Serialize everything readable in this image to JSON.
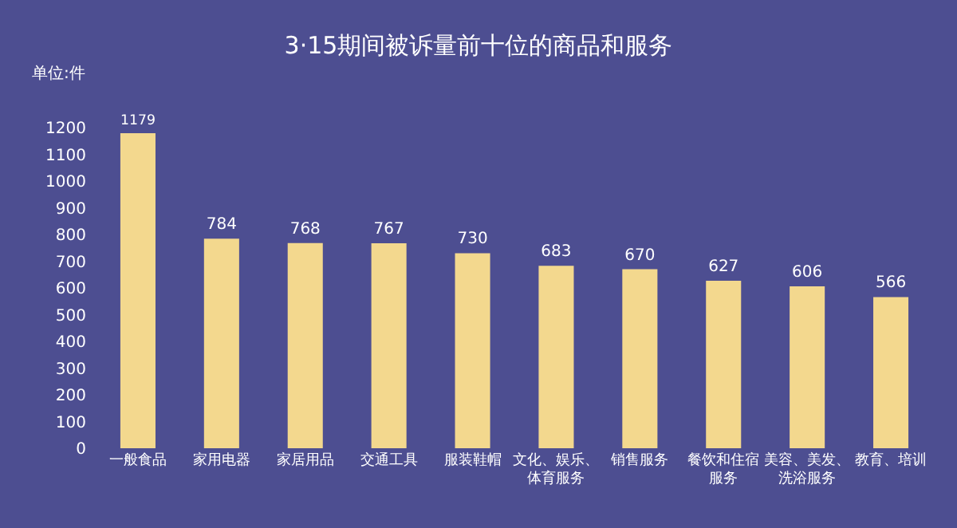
{
  "chart_data": {
    "type": "bar",
    "title": "3·15期间被诉量前十位的商品和服务",
    "ylabel": "单位:件",
    "categories": [
      "一般食品",
      "家用电器",
      "家居用品",
      "交通工具",
      "服装鞋帽",
      "文化、娱乐、体育服务",
      "销售服务",
      "餐饮和住宿服务",
      "美容、美发、洗浴服务",
      "教育、培训"
    ],
    "values": [
      1179,
      784,
      768,
      767,
      730,
      683,
      670,
      627,
      606,
      566
    ],
    "color": "#f3d88e",
    "data_labels": true,
    "grid": false,
    "legend": false,
    "ylim": [
      0,
      1200
    ],
    "yticks": [
      0,
      100,
      200,
      300,
      400,
      500,
      600,
      700,
      800,
      900,
      1000,
      1100,
      1200
    ]
  }
}
